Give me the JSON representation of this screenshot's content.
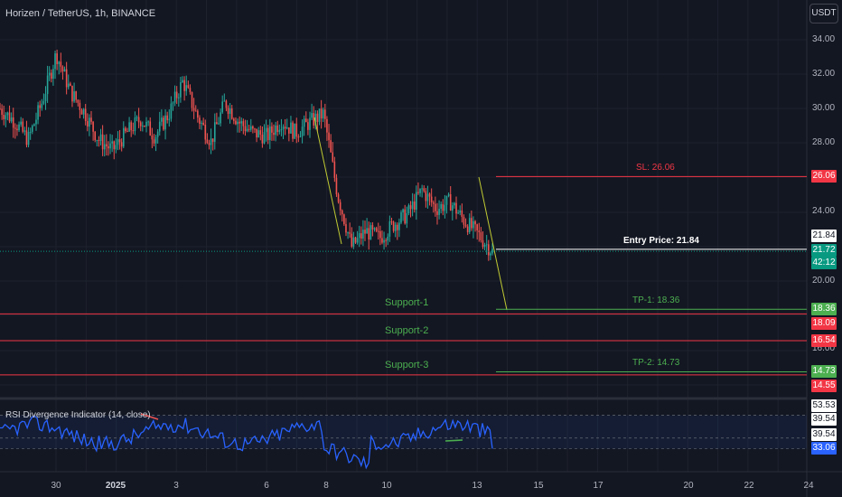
{
  "chart_title": "Horizen / TetherUS, 1h, BINANCE",
  "currency": "USDT",
  "price_axis": [
    "34.00",
    "32.00",
    "30.00",
    "28.00",
    "24.00",
    "20.00",
    "16.00"
  ],
  "time_axis": [
    "30",
    "2025",
    "3",
    "6",
    "8",
    "10",
    "13",
    "15",
    "17",
    "20",
    "22",
    "24"
  ],
  "levels": {
    "sl_label": "SL: 26.06",
    "entry_label": "Entry Price: 21.84",
    "tp1_label": "TP-1: 18.36",
    "tp2_label": "TP-2: 14.73",
    "support1": "Support-1",
    "support2": "Support-2",
    "support3": "Support-3"
  },
  "price_boxes": {
    "sl": "26.06",
    "entry": "21.84",
    "last": "21.72",
    "countdown": "42:12",
    "tp1": "18.36",
    "s1": "18.09",
    "s2": "16.54",
    "tp2": "14.73",
    "s3": "14.55"
  },
  "rsi": {
    "label": "RSI Divergence Indicator (14, close)",
    "axis": [
      "53.53",
      "39.54",
      "39.54",
      "33.06"
    ]
  },
  "colors": {
    "background": "#131722",
    "up": "#26a69a",
    "down": "#ef5350",
    "sl": "#f23645",
    "support": "#f23645",
    "tp": "#4caf50",
    "entry": "#ffffff",
    "rsi_line": "#2962ff"
  },
  "chart_data": {
    "type": "candlestick",
    "symbol": "Horizen / TetherUS",
    "interval": "1h",
    "ylim": [
      13.5,
      36
    ],
    "close_path": [
      [
        "2024-12-27",
        30.0
      ],
      [
        "2024-12-28",
        29.3
      ],
      [
        "2024-12-28",
        28.2
      ],
      [
        "2024-12-29",
        30.4
      ],
      [
        "2024-12-29",
        33.2
      ],
      [
        "2024-12-30",
        31.0
      ],
      [
        "2024-12-30",
        29.8
      ],
      [
        "2024-12-31",
        28.2
      ],
      [
        "2024-12-31",
        27.6
      ],
      [
        "2025-01-01",
        28.6
      ],
      [
        "2025-01-01",
        29.4
      ],
      [
        "2025-01-02",
        28.4
      ],
      [
        "2025-01-02",
        29.7
      ],
      [
        "2025-01-03",
        31.6
      ],
      [
        "2025-01-03",
        29.6
      ],
      [
        "2025-01-04",
        28.1
      ],
      [
        "2025-01-04",
        30.4
      ],
      [
        "2025-01-05",
        29.2
      ],
      [
        "2025-01-05",
        28.6
      ],
      [
        "2025-01-06",
        28.4
      ],
      [
        "2025-01-06",
        29.3
      ],
      [
        "2025-01-07",
        28.6
      ],
      [
        "2025-01-07",
        29.2
      ],
      [
        "2025-01-07",
        29.7
      ],
      [
        "2025-01-08",
        25.0
      ],
      [
        "2025-01-08",
        22.0
      ],
      [
        "2025-01-09",
        22.9
      ],
      [
        "2025-01-09",
        22.5
      ],
      [
        "2025-01-10",
        23.3
      ],
      [
        "2025-01-10",
        23.9
      ],
      [
        "2025-01-11",
        25.3
      ],
      [
        "2025-01-11",
        24.2
      ],
      [
        "2025-01-12",
        24.6
      ],
      [
        "2025-01-12",
        23.5
      ],
      [
        "2025-01-13",
        22.7
      ],
      [
        "2025-01-13",
        21.72
      ]
    ],
    "last_price": 21.72,
    "rsi": {
      "length": 14,
      "source": "close",
      "last": 33.06,
      "levels": [
        53.53,
        39.54,
        39.54
      ]
    }
  }
}
